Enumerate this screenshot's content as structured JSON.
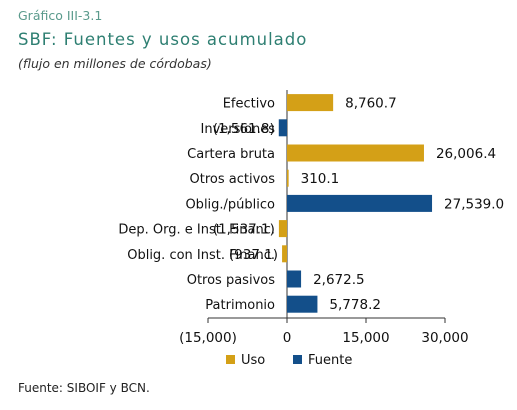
{
  "figure": {
    "label": "Gráfico III-3.1",
    "title": "SBF: Fuentes y usos acumulado",
    "subtitle": "(flujo en millones de córdobas)",
    "source": "Fuente: SIBOIF y BCN."
  },
  "colors": {
    "uso": "#d4a017",
    "fuente": "#134f8a",
    "title": "#2e7f72"
  },
  "chart_data": {
    "type": "bar",
    "orientation": "horizontal",
    "title": "SBF: Fuentes y usos acumulado",
    "subtitle": "(flujo en millones de córdobas)",
    "categories": [
      "Efectivo",
      "Inversiones",
      "Cartera bruta",
      "Otros activos",
      "Oblig./público",
      "Dep. Org. e Inst. Financ.",
      "Oblig. con Inst. Financ.",
      "Otros pasivos",
      "Patrimonio"
    ],
    "values": [
      8760.7,
      -1561.8,
      26006.4,
      310.1,
      27539.0,
      -1537.1,
      -937.1,
      2672.5,
      5778.2
    ],
    "value_labels": [
      "8,760.7",
      "(1,561.8)",
      "26,006.4",
      "310.1",
      "27,539.0",
      "(1,537.1)",
      "(937.1)",
      "2,672.5",
      "5,778.2"
    ],
    "series_of_bar": [
      "uso",
      "fuente",
      "uso",
      "uso",
      "fuente",
      "uso",
      "uso",
      "fuente",
      "fuente"
    ],
    "series": [
      {
        "key": "uso",
        "name": "Uso"
      },
      {
        "key": "fuente",
        "name": "Fuente"
      }
    ],
    "xlim": [
      -15000,
      30000
    ],
    "xticks": [
      -15000,
      0,
      15000,
      30000
    ],
    "xtick_labels": [
      "(15,000)",
      "0",
      "15,000",
      "30,000"
    ],
    "grid": false,
    "legend_position": "bottom"
  }
}
